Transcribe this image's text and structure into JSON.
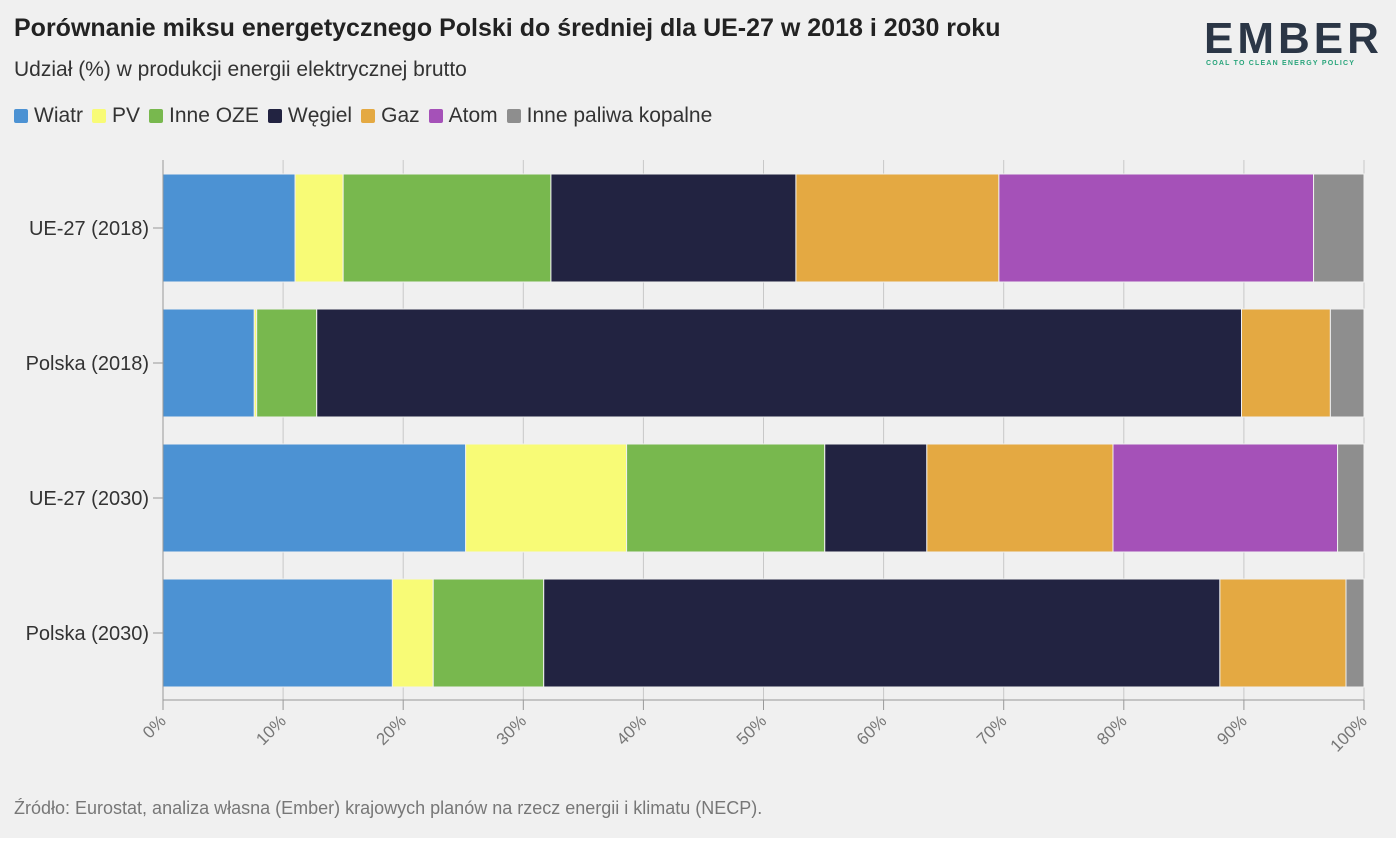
{
  "header": {
    "title": "Porównanie miksu energetycznego Polski do średniej dla UE-27 w 2018 i 2030 roku",
    "subtitle": "Udział (%) w produkcji energii elektrycznej brutto"
  },
  "logo": {
    "text": "EMBER",
    "tagline": "COAL TO CLEAN ENERGY POLICY",
    "color": "#2b3646",
    "accent": "#2aa57c"
  },
  "footer": {
    "source": "Źródło: Eurostat, analiza własna (Ember) krajowych planów na rzecz energii i klimatu (NECP)."
  },
  "chart_data": {
    "type": "bar",
    "orientation": "horizontal",
    "stacked": true,
    "title": "Porównanie miksu energetycznego Polski do średniej dla UE-27 w 2018 i 2030 roku",
    "subtitle": "Udział (%) w produkcji energii elektrycznej brutto",
    "categories": [
      "UE-27 (2018)",
      "Polska (2018)",
      "UE-27 (2030)",
      "Polska (2030)"
    ],
    "xlim": [
      0,
      100
    ],
    "x_ticks": [
      "0%",
      "10%",
      "20%",
      "30%",
      "40%",
      "50%",
      "60%",
      "70%",
      "80%",
      "90%",
      "100%"
    ],
    "grid": true,
    "legend_position": "top-left",
    "series": [
      {
        "name": "Wiatr",
        "color": "#4c92d3",
        "values": [
          11.0,
          7.6,
          25.2,
          19.1
        ]
      },
      {
        "name": "PV",
        "color": "#f8fb76",
        "values": [
          4.0,
          0.2,
          13.4,
          3.4
        ]
      },
      {
        "name": "Inne OZE",
        "color": "#78b84e",
        "values": [
          17.3,
          5.0,
          16.5,
          9.2
        ]
      },
      {
        "name": "Węgiel",
        "color": "#222341",
        "values": [
          20.4,
          77.0,
          8.5,
          56.3
        ]
      },
      {
        "name": "Gaz",
        "color": "#e4a942",
        "values": [
          16.9,
          7.4,
          15.5,
          10.5
        ]
      },
      {
        "name": "Atom",
        "color": "#a551b8",
        "values": [
          26.2,
          0.0,
          18.7,
          0.0
        ]
      },
      {
        "name": "Inne paliwa kopalne",
        "color": "#8e8e8e",
        "values": [
          4.2,
          2.8,
          2.2,
          1.5
        ]
      }
    ]
  }
}
